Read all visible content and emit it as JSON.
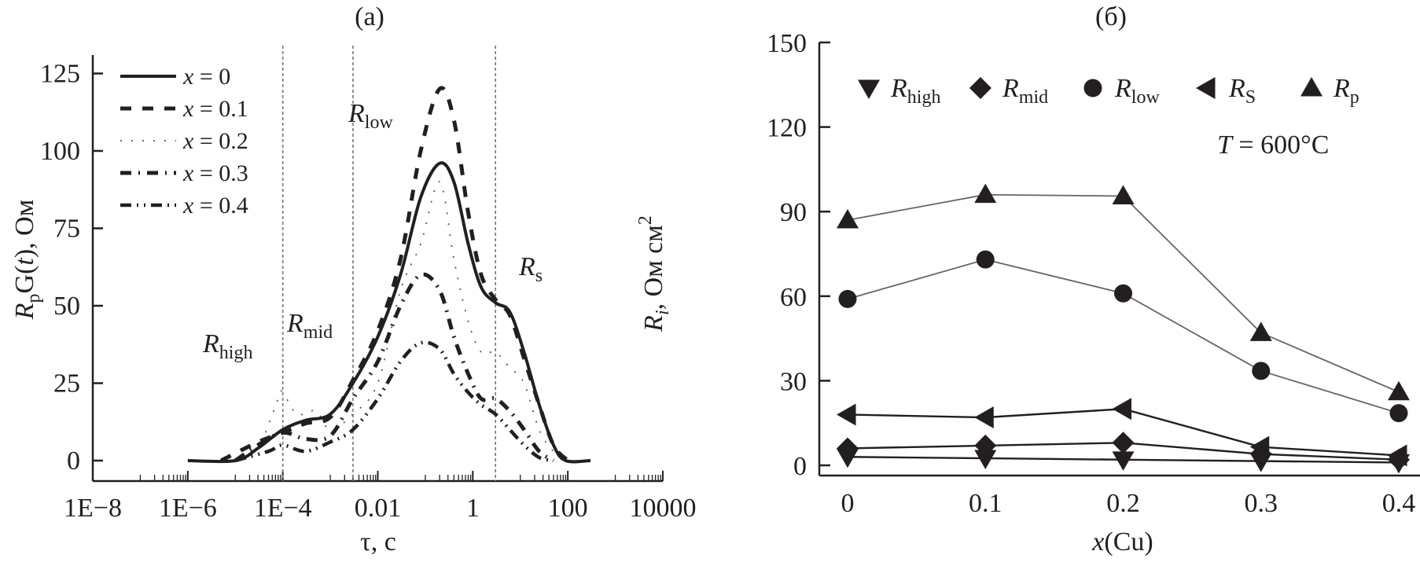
{
  "chart_data": [
    {
      "id": "a",
      "type": "line",
      "title": "(a)",
      "xlabel": "τ, с",
      "ylabel": {
        "main": "R",
        "sub": "p",
        "rest": "G(t), Ом",
        "t": "t"
      },
      "xscale": "log",
      "xlim": [
        1e-08,
        10000
      ],
      "ylim": [
        0,
        130
      ],
      "x_ticks": [
        {
          "value": 1e-08,
          "label": "1E−8"
        },
        {
          "value": 1e-06,
          "label": "1E−6"
        },
        {
          "value": 0.0001,
          "label": "1E−4"
        },
        {
          "value": 0.01,
          "label": "0.01"
        },
        {
          "value": 1,
          "label": "1"
        },
        {
          "value": 100,
          "label": "100"
        },
        {
          "value": 10000,
          "label": "10000"
        }
      ],
      "y_ticks": [
        0,
        25,
        50,
        75,
        100,
        125
      ],
      "vertical_guides": [
        0.0001,
        0.003,
        3
      ],
      "annotations": [
        {
          "main": "R",
          "sub": "high",
          "x": 3e-06,
          "y": 20
        },
        {
          "main": "R",
          "sub": "mid",
          "x": 0.00015,
          "y": 24
        },
        {
          "main": "R",
          "sub": "low",
          "x": 0.0015,
          "y": 88
        },
        {
          "main": "R",
          "sub": "s",
          "x": 6,
          "y": 45
        }
      ],
      "legend_position": "top-left",
      "series": [
        {
          "name": "x = 0",
          "style": "solid",
          "points": [
            [
              1e-06,
              0
            ],
            [
              1e-05,
              0
            ],
            [
              3e-05,
              4
            ],
            [
              0.0001,
              10
            ],
            [
              0.0003,
              13
            ],
            [
              0.001,
              15
            ],
            [
              0.003,
              25
            ],
            [
              0.01,
              40
            ],
            [
              0.03,
              60
            ],
            [
              0.08,
              85
            ],
            [
              0.2,
              96
            ],
            [
              0.4,
              90
            ],
            [
              0.8,
              70
            ],
            [
              1.5,
              56
            ],
            [
              3,
              51
            ],
            [
              6,
              48
            ],
            [
              12,
              35
            ],
            [
              25,
              18
            ],
            [
              50,
              5
            ],
            [
              90,
              0
            ],
            [
              300,
              0
            ]
          ]
        },
        {
          "name": "x = 0.1",
          "style": "dashed",
          "points": [
            [
              5e-06,
              0
            ],
            [
              3e-05,
              6
            ],
            [
              0.0001,
              9
            ],
            [
              0.0003,
              12
            ],
            [
              0.001,
              14
            ],
            [
              0.003,
              26
            ],
            [
              0.01,
              42
            ],
            [
              0.03,
              65
            ],
            [
              0.08,
              100
            ],
            [
              0.2,
              120
            ],
            [
              0.4,
              110
            ],
            [
              0.8,
              80
            ],
            [
              1.5,
              60
            ],
            [
              3,
              52
            ],
            [
              6,
              47
            ],
            [
              12,
              33
            ],
            [
              25,
              18
            ],
            [
              50,
              5
            ],
            [
              100,
              0
            ]
          ]
        },
        {
          "name": "x = 0.2",
          "style": "dotted",
          "points": [
            [
              1e-05,
              0
            ],
            [
              3e-05,
              4
            ],
            [
              8e-05,
              20
            ],
            [
              0.0001,
              22
            ],
            [
              0.0002,
              15
            ],
            [
              0.0005,
              16
            ],
            [
              0.001,
              10
            ],
            [
              0.003,
              15
            ],
            [
              0.01,
              25
            ],
            [
              0.03,
              55
            ],
            [
              0.08,
              70
            ],
            [
              0.2,
              90
            ],
            [
              0.4,
              65
            ],
            [
              0.8,
              45
            ],
            [
              1.5,
              35
            ],
            [
              3,
              35
            ],
            [
              6,
              30
            ],
            [
              12,
              25
            ],
            [
              25,
              10
            ],
            [
              50,
              3
            ],
            [
              100,
              0
            ]
          ]
        },
        {
          "name": "x = 0.3",
          "style": "dashdot",
          "points": [
            [
              1e-05,
              0
            ],
            [
              3e-05,
              5
            ],
            [
              0.0001,
              9
            ],
            [
              0.0003,
              7
            ],
            [
              0.001,
              8
            ],
            [
              0.003,
              20
            ],
            [
              0.01,
              32
            ],
            [
              0.03,
              50
            ],
            [
              0.08,
              60
            ],
            [
              0.2,
              55
            ],
            [
              0.4,
              40
            ],
            [
              0.8,
              28
            ],
            [
              1.5,
              20
            ],
            [
              3,
              20
            ],
            [
              6,
              16
            ],
            [
              12,
              10
            ],
            [
              25,
              3
            ],
            [
              50,
              0
            ]
          ]
        },
        {
          "name": "x = 0.4",
          "style": "dashdotdot",
          "points": [
            [
              1e-05,
              0
            ],
            [
              5e-05,
              3
            ],
            [
              0.0001,
              5
            ],
            [
              0.0003,
              3
            ],
            [
              0.001,
              6
            ],
            [
              0.003,
              10
            ],
            [
              0.01,
              20
            ],
            [
              0.03,
              32
            ],
            [
              0.08,
              38
            ],
            [
              0.2,
              36
            ],
            [
              0.4,
              28
            ],
            [
              0.8,
              22
            ],
            [
              1.5,
              18
            ],
            [
              3,
              15
            ],
            [
              6,
              10
            ],
            [
              12,
              5
            ],
            [
              25,
              1
            ],
            [
              50,
              0
            ]
          ]
        }
      ]
    },
    {
      "id": "b",
      "type": "line",
      "title": "(б)",
      "xlabel": {
        "main": "x",
        "rest": "(Cu)"
      },
      "ylabel": {
        "main": "R",
        "sub": "i",
        "rest": ", Ом см",
        "sup": "2"
      },
      "xlim": [
        0,
        0.4
      ],
      "ylim": [
        0,
        150
      ],
      "x_ticks": [
        "0",
        "0.1",
        "0.2",
        "0.3",
        "0.4"
      ],
      "x": [
        0,
        0.1,
        0.2,
        0.3,
        0.4
      ],
      "y_ticks": [
        0,
        30,
        60,
        90,
        120,
        150
      ],
      "annotation": {
        "main": "T",
        "rest": " = 600°C"
      },
      "legend_position": "top",
      "series": [
        {
          "name": "R",
          "sub": "high",
          "marker": "triangle-down",
          "values": [
            3,
            2.5,
            2,
            1.5,
            1
          ]
        },
        {
          "name": "R",
          "sub": "mid",
          "marker": "diamond",
          "values": [
            6,
            7,
            8,
            4,
            2
          ]
        },
        {
          "name": "R",
          "sub": "low",
          "marker": "circle",
          "values": [
            59,
            73,
            61,
            33.5,
            18.5
          ]
        },
        {
          "name": "R",
          "sub": "S",
          "marker": "triangle-left",
          "values": [
            18,
            17,
            20,
            6.5,
            3.5
          ]
        },
        {
          "name": "R",
          "sub": "p",
          "marker": "triangle-up",
          "values": [
            87,
            96,
            95.5,
            47,
            26
          ]
        }
      ]
    }
  ]
}
